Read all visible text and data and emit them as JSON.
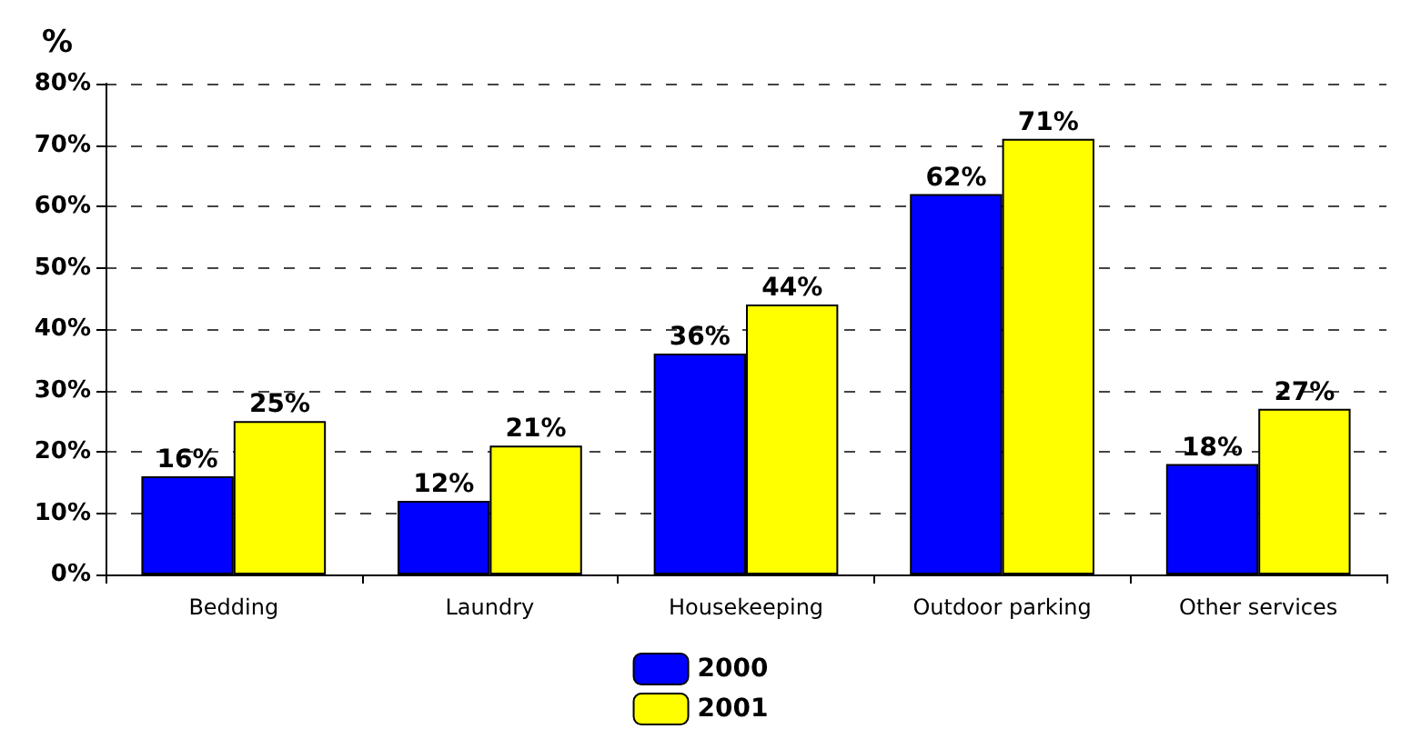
{
  "chart_data": {
    "type": "bar",
    "ylabel": "%",
    "categories": [
      "Bedding",
      "Laundry",
      "Housekeeping",
      "Outdoor parking",
      "Other services"
    ],
    "series": [
      {
        "name": "2000",
        "color": "#0000ff",
        "values": [
          16,
          12,
          36,
          62,
          18
        ],
        "value_labels": [
          "16%",
          "12%",
          "36%",
          "62%",
          "18%"
        ]
      },
      {
        "name": "2001",
        "color": "#ffff00",
        "values": [
          25,
          21,
          44,
          71,
          27
        ],
        "value_labels": [
          "25%",
          "21%",
          "44%",
          "71%",
          "27%"
        ]
      }
    ],
    "ylim": [
      0,
      80
    ],
    "yticks": [
      {
        "value": 0,
        "label": "0%"
      },
      {
        "value": 10,
        "label": "10%"
      },
      {
        "value": 20,
        "label": "20%"
      },
      {
        "value": 30,
        "label": "30%"
      },
      {
        "value": 40,
        "label": "40%"
      },
      {
        "value": 50,
        "label": "50%"
      },
      {
        "value": 60,
        "label": "60%"
      },
      {
        "value": 70,
        "label": "70%"
      },
      {
        "value": 80,
        "label": "80%"
      }
    ],
    "grid": "y",
    "legend": "bottom"
  }
}
